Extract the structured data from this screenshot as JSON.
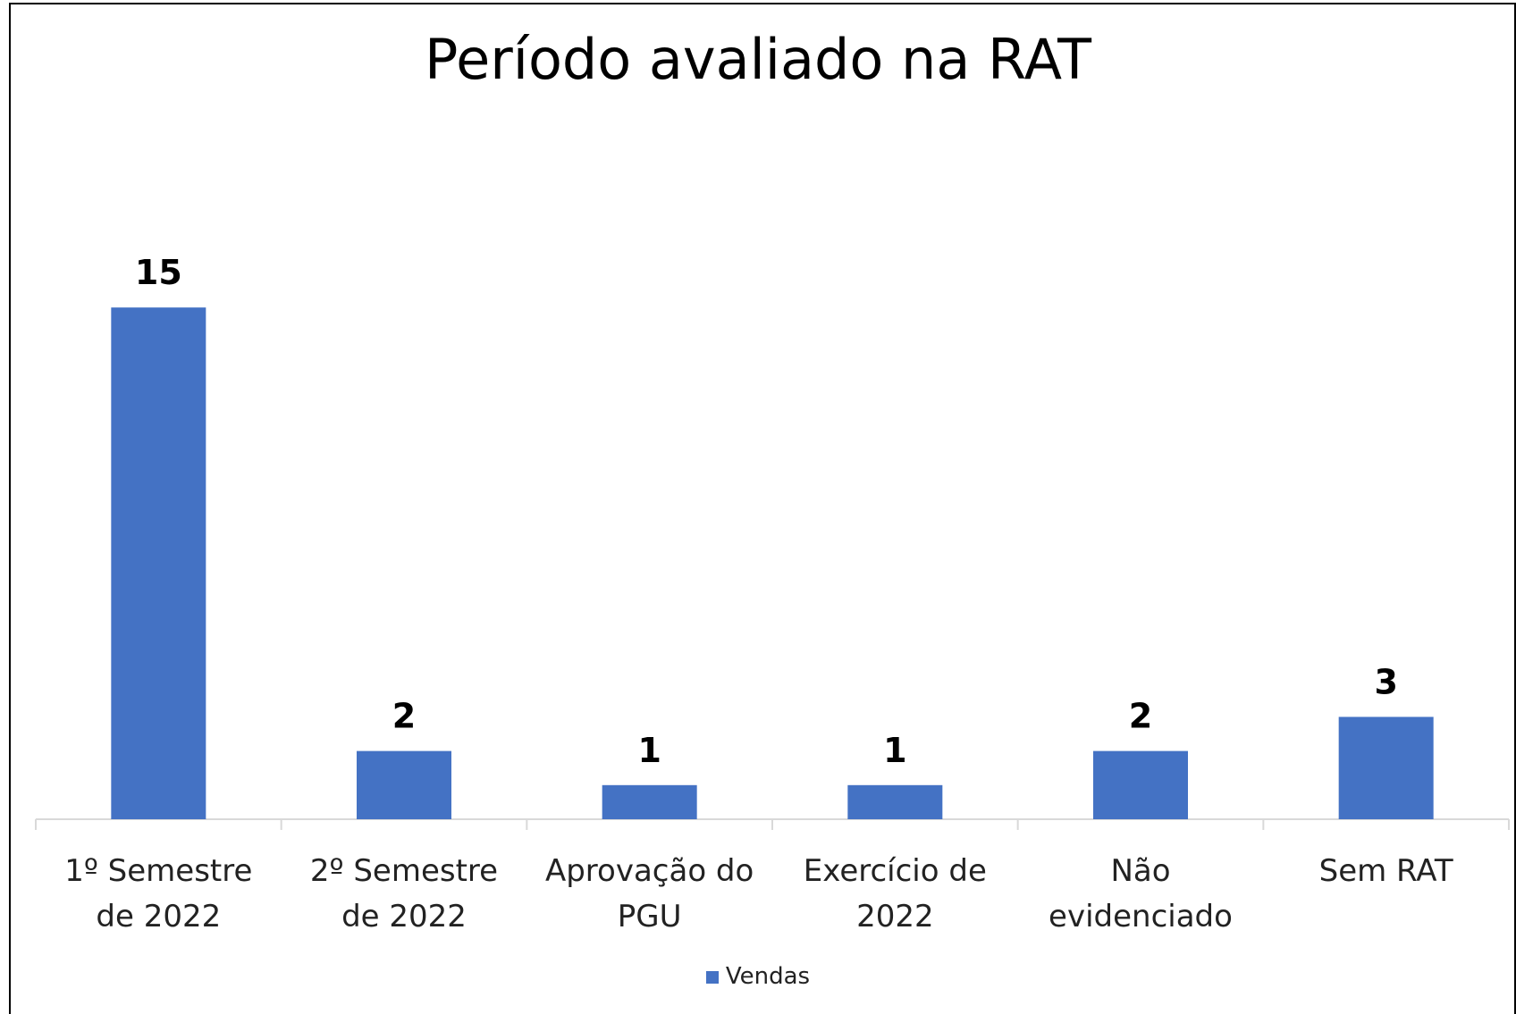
{
  "chart_data": {
    "type": "bar",
    "title": "Período avaliado na RAT",
    "categories": [
      "1º Semestre de 2022",
      "2º Semestre de 2022",
      "Aprovação do PGU",
      "Exercício de 2022",
      "Não evidenciado",
      "Sem RAT"
    ],
    "series": [
      {
        "name": "Vendas",
        "color": "#4472c4",
        "values": [
          15,
          2,
          1,
          1,
          2,
          3
        ]
      }
    ],
    "ylim": [
      0,
      16
    ],
    "legend": "bottom"
  }
}
